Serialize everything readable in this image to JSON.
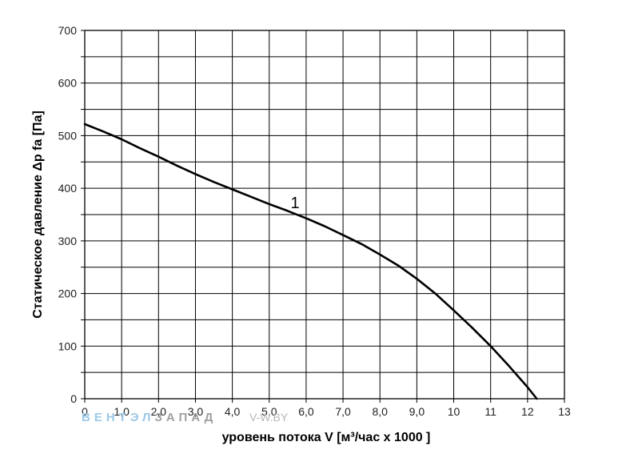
{
  "chart_data": {
    "type": "line",
    "xlabel": "уровень потока  V [м³/час х 1000 ]",
    "ylabel": "Статическое давление  Δp fa [Па]",
    "xlim": [
      0,
      13
    ],
    "ylim": [
      0,
      700
    ],
    "x_tick_labels": [
      "0",
      "1,0",
      "2,0",
      "3,0",
      "4,0",
      "5,0",
      "6,0",
      "7,0",
      "8,0",
      "9,0",
      "10",
      "11",
      "12",
      "13"
    ],
    "y_tick_labels": [
      "0",
      "100",
      "200",
      "300",
      "400",
      "500",
      "600",
      "700"
    ],
    "grid": true,
    "series": [
      {
        "label": "1",
        "color": "#000000",
        "x": [
          0,
          0.5,
          1.0,
          1.5,
          2.0,
          2.5,
          3.0,
          3.5,
          4.0,
          4.5,
          5.0,
          5.5,
          6.0,
          6.5,
          7.0,
          7.5,
          8.0,
          8.5,
          9.0,
          9.5,
          10.0,
          10.5,
          11.0,
          11.5,
          12.0,
          12.25
        ],
        "y": [
          522,
          508,
          493,
          476,
          460,
          443,
          427,
          412,
          398,
          384,
          370,
          357,
          343,
          328,
          311,
          294,
          274,
          253,
          228,
          200,
          168,
          135,
          100,
          62,
          22,
          0
        ]
      }
    ]
  },
  "watermark": {
    "part1": "ВЕНТЭЛ",
    "part2": "ЗАПАД",
    "part3": "V-W.BY",
    "color1": "#9cc8e8",
    "color2": "#a0a0a0",
    "color3": "#b8b8b8"
  }
}
